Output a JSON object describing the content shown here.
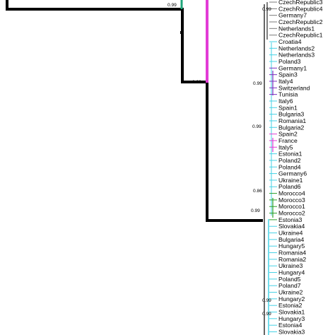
{
  "tree": {
    "colors": {
      "backbone": "#000000",
      "magenta": "#e23bd6",
      "teal": "#1fa57a",
      "cyan": "#45d2e6",
      "purple": "#7b2fbf",
      "green": "#2aa02a",
      "gray": "#7a7a7a"
    },
    "support_values": [
      "0.99",
      "0.99",
      "0.99",
      "0.99",
      "0.99",
      "0.86",
      "0.99",
      "0.99",
      "0.99"
    ],
    "leaves": [
      "CzechRepublic3",
      "CzechRepublic4",
      "Germany7",
      "CzechRepublic2",
      "Netherlands1",
      "CzechRepublic1",
      "Croatia4",
      "Netherlands2",
      "Netherlands3",
      "Poland3",
      "Germany1",
      "Spain3",
      "Italy4",
      "Switzerland",
      "Tunisia",
      "Italy6",
      "Spain1",
      "Bulgaria3",
      "Romania1",
      "Bulgaria2",
      "Spain2",
      "France",
      "Italy5",
      "Estonia1",
      "Poland2",
      "Poland4",
      "Germany6",
      "Ukraine1",
      "Poland6",
      "Morocco4",
      "Morocco3",
      "Morocco1",
      "Morocco2",
      "Estonia3",
      "Slovakia4",
      "Ukraine4",
      "Bulgaria4",
      "Hungary5",
      "Romania4",
      "Romania2",
      "Ukraine3",
      "Hungary4",
      "Poland5",
      "Poland7",
      "Ukraine2",
      "Hungary2",
      "Estonia2",
      "Slovakia1",
      "Hungary3",
      "Estonia4",
      "Slovakia3"
    ]
  }
}
